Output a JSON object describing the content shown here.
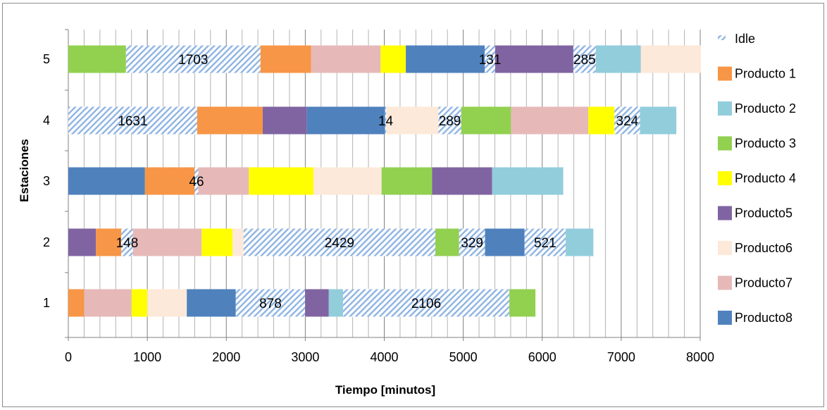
{
  "chart_data": {
    "type": "bar",
    "orientation": "horizontal",
    "stacked": true,
    "xlabel": "Tiempo [minutos]",
    "ylabel": "Estaciones",
    "xlim": [
      0,
      8000
    ],
    "xticks": [
      0,
      1000,
      2000,
      3000,
      4000,
      5000,
      6000,
      7000,
      8000
    ],
    "categories": [
      "1",
      "2",
      "3",
      "4",
      "5"
    ],
    "grid": {
      "vertical_major": true,
      "vertical_minor": true,
      "minor_step": 200
    },
    "legend": {
      "position": "right",
      "entries": [
        "Idle",
        "Producto 1",
        "Producto 2",
        "Producto 3",
        "Producto 4",
        "Producto5",
        "Producto6",
        "Producto7",
        "Producto8"
      ]
    },
    "series_colors": {
      "Idle": "#c5d9f1",
      "Producto 1": "#f79646",
      "Producto 2": "#92cddc",
      "Producto 3": "#92d050",
      "Producto 4": "#ffff00",
      "Producto5": "#8064a2",
      "Producto6": "#fde9d9",
      "Producto7": "#e6b9b8",
      "Producto8": "#4f81bd"
    },
    "idle_pattern_color": "#8db3e2",
    "stations": [
      {
        "station": "1",
        "segments": [
          {
            "series": "Producto 1",
            "value": 200
          },
          {
            "series": "Producto7",
            "value": 600
          },
          {
            "series": "Producto 4",
            "value": 200
          },
          {
            "series": "Producto6",
            "value": 500
          },
          {
            "series": "Producto8",
            "value": 620
          },
          {
            "series": "Idle",
            "value": 878,
            "label": "878"
          },
          {
            "series": "Producto5",
            "value": 300
          },
          {
            "series": "Producto 2",
            "value": 180
          },
          {
            "series": "Idle",
            "value": 2106,
            "label": "2106"
          },
          {
            "series": "Producto 3",
            "value": 330
          }
        ]
      },
      {
        "station": "2",
        "segments": [
          {
            "series": "Producto5",
            "value": 350
          },
          {
            "series": "Producto 1",
            "value": 320
          },
          {
            "series": "Idle",
            "value": 148,
            "label": "148"
          },
          {
            "series": "Producto7",
            "value": 870
          },
          {
            "series": "Producto 4",
            "value": 390
          },
          {
            "series": "Producto6",
            "value": 140
          },
          {
            "series": "Idle",
            "value": 2429,
            "label": "2429"
          },
          {
            "series": "Producto 3",
            "value": 300
          },
          {
            "series": "Idle",
            "value": 329,
            "label": "329"
          },
          {
            "series": "Producto8",
            "value": 500
          },
          {
            "series": "Idle",
            "value": 521,
            "label": "521"
          },
          {
            "series": "Producto 2",
            "value": 350
          }
        ]
      },
      {
        "station": "3",
        "segments": [
          {
            "series": "Producto8",
            "value": 970
          },
          {
            "series": "Producto 1",
            "value": 630
          },
          {
            "series": "Idle",
            "value": 46,
            "label": "46"
          },
          {
            "series": "Producto7",
            "value": 640
          },
          {
            "series": "Producto 4",
            "value": 820
          },
          {
            "series": "Producto6",
            "value": 860
          },
          {
            "series": "Producto 3",
            "value": 640
          },
          {
            "series": "Producto5",
            "value": 760
          },
          {
            "series": "Producto 2",
            "value": 900
          }
        ]
      },
      {
        "station": "4",
        "segments": [
          {
            "series": "Idle",
            "value": 1631,
            "label": "1631"
          },
          {
            "series": "Producto 1",
            "value": 830
          },
          {
            "series": "Producto5",
            "value": 560
          },
          {
            "series": "Producto8",
            "value": 990
          },
          {
            "series": "Idle",
            "value": 14,
            "label": "14"
          },
          {
            "series": "Producto6",
            "value": 660
          },
          {
            "series": "Idle",
            "value": 289,
            "label": "289"
          },
          {
            "series": "Producto 3",
            "value": 630
          },
          {
            "series": "Producto7",
            "value": 980
          },
          {
            "series": "Producto 4",
            "value": 330
          },
          {
            "series": "Idle",
            "value": 324,
            "label": "324"
          },
          {
            "series": "Producto 2",
            "value": 460
          }
        ]
      },
      {
        "station": "5",
        "segments": [
          {
            "series": "Producto 3",
            "value": 730
          },
          {
            "series": "Idle",
            "value": 1703,
            "label": "1703"
          },
          {
            "series": "Producto 1",
            "value": 640
          },
          {
            "series": "Producto7",
            "value": 880
          },
          {
            "series": "Producto 4",
            "value": 320
          },
          {
            "series": "Producto8",
            "value": 1000
          },
          {
            "series": "Idle",
            "value": 131,
            "label": "131"
          },
          {
            "series": "Producto5",
            "value": 990
          },
          {
            "series": "Idle",
            "value": 285,
            "label": "285"
          },
          {
            "series": "Producto 2",
            "value": 570
          },
          {
            "series": "Producto6",
            "value": 760
          }
        ]
      }
    ]
  }
}
